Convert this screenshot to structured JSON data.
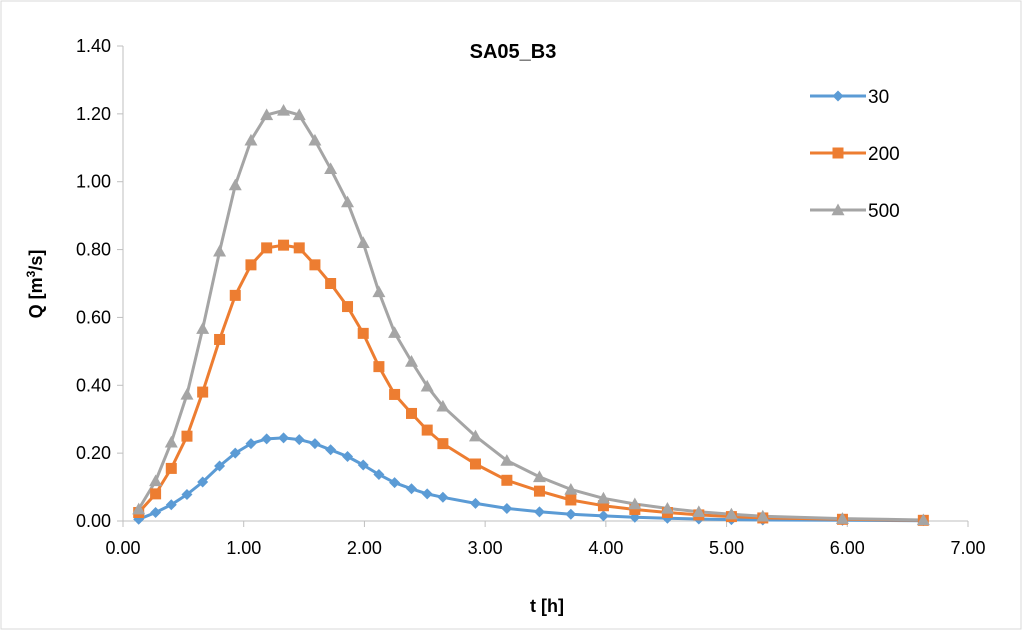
{
  "chart_data": {
    "type": "line",
    "title": "SA05_B3",
    "xlabel": "t [h]",
    "ylabel_main": "Q [m",
    "ylabel_sup": "3",
    "ylabel_end": "/s]",
    "xlim": [
      0,
      7
    ],
    "ylim": [
      0,
      1.4
    ],
    "x_ticks": [
      0,
      1,
      2,
      3,
      4,
      5,
      6,
      7
    ],
    "x_tick_labels": [
      "0.00",
      "1.00",
      "2.00",
      "3.00",
      "4.00",
      "5.00",
      "6.00",
      "7.00"
    ],
    "y_ticks": [
      0,
      0.2,
      0.4,
      0.6,
      0.8,
      1.0,
      1.2,
      1.4
    ],
    "y_tick_labels": [
      "0.00",
      "0.20",
      "0.40",
      "0.60",
      "0.80",
      "1.00",
      "1.20",
      "1.40"
    ],
    "grid": false,
    "legend_position": "top-right",
    "x": [
      0.13,
      0.27,
      0.4,
      0.53,
      0.66,
      0.8,
      0.93,
      1.06,
      1.19,
      1.33,
      1.46,
      1.59,
      1.72,
      1.86,
      1.99,
      2.12,
      2.25,
      2.39,
      2.52,
      2.65,
      2.92,
      3.18,
      3.45,
      3.71,
      3.98,
      4.24,
      4.51,
      4.77,
      5.04,
      5.3,
      5.96,
      6.63
    ],
    "series": [
      {
        "name": "30",
        "color": "#5B9BD5",
        "marker": "diamond",
        "values": [
          0.005,
          0.025,
          0.048,
          0.078,
          0.115,
          0.162,
          0.2,
          0.228,
          0.242,
          0.245,
          0.24,
          0.228,
          0.21,
          0.19,
          0.165,
          0.137,
          0.113,
          0.095,
          0.08,
          0.07,
          0.052,
          0.037,
          0.027,
          0.02,
          0.015,
          0.011,
          0.008,
          0.006,
          0.004,
          0.003,
          0.002,
          0.001
        ]
      },
      {
        "name": "200",
        "color": "#ED7D31",
        "marker": "square",
        "values": [
          0.025,
          0.08,
          0.155,
          0.25,
          0.38,
          0.535,
          0.665,
          0.755,
          0.805,
          0.813,
          0.805,
          0.755,
          0.7,
          0.632,
          0.553,
          0.455,
          0.373,
          0.317,
          0.268,
          0.228,
          0.168,
          0.12,
          0.088,
          0.062,
          0.045,
          0.034,
          0.025,
          0.018,
          0.013,
          0.009,
          0.005,
          0.002
        ]
      },
      {
        "name": "500",
        "color": "#A5A5A5",
        "marker": "triangle",
        "values": [
          0.035,
          0.118,
          0.232,
          0.373,
          0.567,
          0.795,
          0.99,
          1.122,
          1.197,
          1.21,
          1.197,
          1.122,
          1.038,
          0.94,
          0.82,
          0.675,
          0.555,
          0.47,
          0.397,
          0.338,
          0.25,
          0.178,
          0.13,
          0.093,
          0.067,
          0.05,
          0.037,
          0.027,
          0.02,
          0.014,
          0.007,
          0.003
        ]
      }
    ]
  }
}
